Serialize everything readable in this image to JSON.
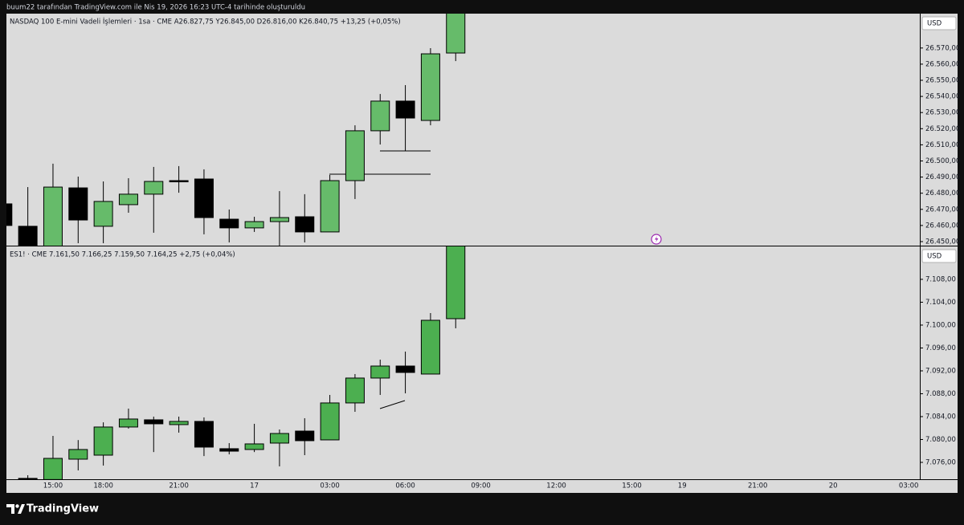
{
  "header": {
    "attribution": "buum22 tarafından TradingView.com ile Nis 19, 2026 16:23 UTC-4 tarihinde oluşturuldu"
  },
  "chart_data": [
    {
      "type": "candlestick",
      "title": "NASDAQ 100 E-mini Vadeli İşlemleri · 1sa · CME   A26.827,75   Y26.845,00   D26.816,00   K26.840,75   +13,25 (+0,05%)",
      "currency": "USD",
      "up_color": "#66bb6a",
      "down_color": "#000000",
      "open": [
        26473.4,
        26459.5,
        26446,
        26483.3,
        26459.5,
        26472.9,
        26479.4,
        26487.8,
        26488.8,
        26463.9,
        26458.5,
        26462.4,
        26465.4,
        26456,
        26487.8,
        26518.7,
        26537.1,
        26525.1,
        26566.9,
        null,
        null,
        null,
        null,
        null,
        null,
        null,
        null,
        null,
        null,
        null,
        null,
        null,
        null,
        null,
        null,
        null,
        null
      ],
      "high": [
        26473.4,
        26483.8,
        26498.3,
        26490.3,
        26487.3,
        26489.3,
        26496.3,
        26496.8,
        26494.8,
        26469.9,
        26465.4,
        26481.3,
        26479.4,
        26491.3,
        26522.1,
        26541.5,
        26547,
        26569.9,
        26597,
        null,
        null,
        null,
        null,
        null,
        null,
        null,
        null,
        null,
        null,
        null,
        null,
        null,
        null,
        null,
        null,
        null,
        null
      ],
      "low": [
        26460,
        26444,
        26444,
        26449,
        26449,
        26467.9,
        26455.5,
        26480.3,
        26454.5,
        26449.5,
        26456,
        26447,
        26449.5,
        26456,
        26476.4,
        26510.2,
        26506.2,
        26522.1,
        26561.9,
        null,
        null,
        null,
        null,
        null,
        null,
        null,
        null,
        null,
        null,
        null,
        null,
        null,
        null,
        null,
        null,
        null,
        null
      ],
      "close": [
        26460,
        26445,
        26483.8,
        26463.4,
        26474.9,
        26479.4,
        26487.3,
        26487.3,
        26464.9,
        26458.5,
        26462.4,
        26464.9,
        26456,
        26487.8,
        26518.7,
        26537.1,
        26526.6,
        26566.4,
        26595,
        null,
        null,
        null,
        null,
        null,
        null,
        null,
        null,
        null,
        null,
        null,
        null,
        null,
        null,
        null,
        null,
        null,
        null
      ],
      "ylim": [
        26447.5,
        26591.3
      ],
      "yticks": [
        {
          "value": 26450,
          "label": "26.450,00"
        },
        {
          "value": 26460,
          "label": "26.460,00"
        },
        {
          "value": 26470,
          "label": "26.470,00"
        },
        {
          "value": 26480,
          "label": "26.480,00"
        },
        {
          "value": 26490,
          "label": "26.490,00"
        },
        {
          "value": 26500,
          "label": "26.500,00"
        },
        {
          "value": 26510,
          "label": "26.510,00"
        },
        {
          "value": 26520,
          "label": "26.520,00"
        },
        {
          "value": 26530,
          "label": "26.530,00"
        },
        {
          "value": 26540,
          "label": "26.540,00"
        },
        {
          "value": 26550,
          "label": "26.550,00"
        },
        {
          "value": 26560,
          "label": "26.560,00"
        },
        {
          "value": 26570,
          "label": "26.570,00"
        }
      ]
    },
    {
      "type": "candlestick",
      "title": "ES1! · CME   7.161,50   7.166,25   7.159,50   7.164,25   +2,75 (+0,04%)",
      "currency": "USD",
      "up_color": "#4caf50",
      "down_color": "#000000",
      "categories": [
        null,
        null,
        "15:00",
        null,
        "18:00",
        null,
        null,
        "21:00",
        null,
        null,
        "17",
        null,
        null,
        "03:00",
        null,
        null,
        "06:00",
        null,
        null,
        "09:00",
        null,
        null,
        "12:00",
        null,
        null,
        "15:00",
        null,
        "19",
        null,
        null,
        "21:00",
        null,
        null,
        "20",
        null,
        null,
        "03:00"
      ],
      "open": [
        null,
        7073.2,
        7073,
        7076.56,
        7077.26,
        7082.18,
        7083.44,
        7082.6,
        7083.16,
        7078.39,
        7078.25,
        7079.37,
        7081.47,
        7079.93,
        7086.39,
        7090.74,
        7092.84,
        7091.44,
        7101.12,
        null,
        null,
        null,
        null,
        null,
        null,
        null,
        null,
        null,
        null,
        null,
        null,
        null,
        null,
        null,
        null,
        null,
        null
      ],
      "high": [
        null,
        7073.75,
        7080.63,
        7079.9,
        7083,
        7085.4,
        7084,
        7084,
        7083.86,
        7079.37,
        7082.74,
        7081.75,
        7083.72,
        7087.79,
        7091.44,
        7093.96,
        7095.37,
        7102.1,
        7116,
        null,
        null,
        null,
        null,
        null,
        null,
        null,
        null,
        null,
        null,
        null,
        null,
        null,
        null,
        null,
        null,
        null,
        null
      ],
      "low": [
        null,
        7072,
        7072.5,
        7074.6,
        7075.44,
        7081.9,
        7077.8,
        7081.2,
        7077.1,
        7077.4,
        7077.8,
        7075.3,
        7077.26,
        7079.93,
        7084.84,
        7087.79,
        7088.07,
        7091.44,
        7099.44,
        null,
        null,
        null,
        null,
        null,
        null,
        null,
        null,
        null,
        null,
        null,
        null,
        null,
        null,
        null,
        null,
        null,
        null
      ],
      "close": [
        null,
        7072.8,
        7076.7,
        7078.25,
        7082.18,
        7083.58,
        7082.74,
        7083.16,
        7078.67,
        7077.96,
        7079.23,
        7081.05,
        7079.79,
        7086.39,
        7090.74,
        7092.84,
        7091.72,
        7100.84,
        7115,
        null,
        null,
        null,
        null,
        null,
        null,
        null,
        null,
        null,
        null,
        null,
        null,
        null,
        null,
        null,
        null,
        null,
        null
      ],
      "ylim": [
        7073.05,
        7113.75
      ],
      "yticks": [
        {
          "value": 7076,
          "label": "7.076,00"
        },
        {
          "value": 7080,
          "label": "7.080,00"
        },
        {
          "value": 7084,
          "label": "7.084,00"
        },
        {
          "value": 7088,
          "label": "7.088,00"
        },
        {
          "value": 7092,
          "label": "7.092,00"
        },
        {
          "value": 7096,
          "label": "7.096,00"
        },
        {
          "value": 7100,
          "label": "7.100,00"
        },
        {
          "value": 7104,
          "label": "7.104,00"
        },
        {
          "value": 7108,
          "label": "7.108,00"
        }
      ]
    }
  ],
  "footer": {
    "brand": "TradingView"
  }
}
